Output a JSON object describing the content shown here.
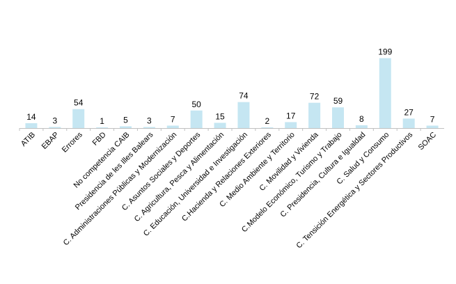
{
  "chart_data": {
    "type": "bar",
    "title": "",
    "xlabel": "",
    "ylabel": "",
    "categories": [
      "ATIB",
      "EBAP",
      "Errores",
      "FBD",
      "No competencia CAIB",
      "Presidencia de les Illes Balears",
      "C. Administraciones Públicas y Modernización",
      "C. Asuntos Sociales y Deportes",
      "C. Agricultura, Pesca y Alimentación",
      "C. Educación, Universidad e Investigación",
      "C.Hacienda y Relaciones Exteriores",
      "C. Medio Ambiente y Territorio",
      "C. Movilidad y Vivienda",
      "C.Modelo Económico, Turismo y Trabajo",
      "C. Presidencia, Cultura e Igualdad",
      "C. Salud y Consumo",
      "C. Tensición Energética y Sectores Productivos",
      "SOAC"
    ],
    "values": [
      14,
      3,
      54,
      1,
      5,
      3,
      7,
      50,
      15,
      74,
      2,
      17,
      72,
      59,
      8,
      199,
      27,
      7
    ],
    "ylim": [
      0,
      210
    ],
    "grid": false,
    "legend": "none",
    "bar_color": "#c5e6f2",
    "axis_color": "#c0c0c0"
  }
}
